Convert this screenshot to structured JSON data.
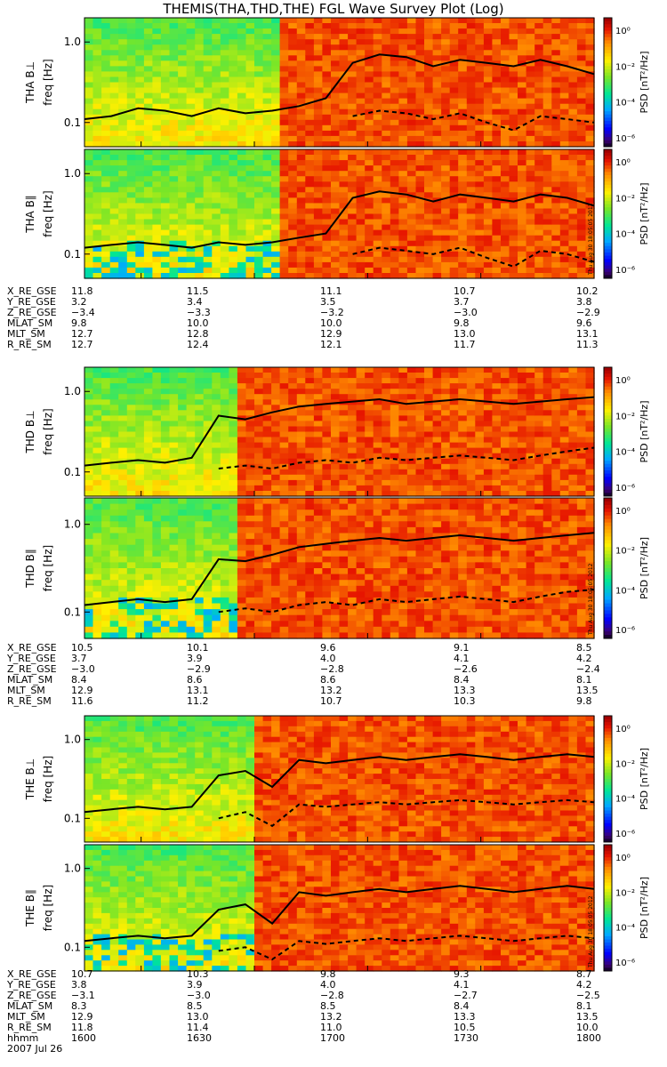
{
  "title": "THEMIS(THA,THD,THE) FGL Wave Survey Plot (Log)",
  "freq_label": "freq [Hz]",
  "colorbar_label": "PSD [nT²/Hz]",
  "colorbar_ticks": [
    "10⁰",
    "10⁻²",
    "10⁻⁴",
    "10⁻⁶"
  ],
  "y_ticks": [
    "1.0",
    "0.1"
  ],
  "stamp": "Thu Aug 30 18:05:05 2012",
  "date": "2007 Jul 26",
  "time_axis": {
    "label": "hhmm",
    "ticks": [
      "1600",
      "1630",
      "1700",
      "1730",
      "1800"
    ]
  },
  "colors": {
    "background": "#ffffff",
    "line": "#000000"
  },
  "chart_data": [
    {
      "type": "heatmap",
      "panel": "THA B⊥",
      "ylabel": "THA B⊥",
      "y_scale": "log",
      "ylim": [
        0.05,
        2.0
      ],
      "zlim": [
        1e-06,
        10
      ],
      "onset_hhmm": "1635",
      "lines": {
        "solid": [
          0.11,
          0.12,
          0.15,
          0.14,
          0.12,
          0.15,
          0.13,
          0.14,
          0.16,
          0.2,
          0.55,
          0.7,
          0.65,
          0.5,
          0.6,
          0.55,
          0.5,
          0.6,
          0.5,
          0.4
        ],
        "dashed": [
          0,
          0,
          0,
          0,
          0,
          0,
          0,
          0,
          0,
          0,
          0.12,
          0.14,
          0.13,
          0.11,
          0.13,
          0.1,
          0.08,
          0.12,
          0.11,
          0.1
        ]
      }
    },
    {
      "type": "heatmap",
      "panel": "THA B∥",
      "ylabel": "THA B∥",
      "y_scale": "log",
      "ylim": [
        0.05,
        2.0
      ],
      "zlim": [
        1e-06,
        10
      ],
      "onset_hhmm": "1635",
      "lines": {
        "solid": [
          0.12,
          0.13,
          0.14,
          0.13,
          0.12,
          0.14,
          0.13,
          0.14,
          0.16,
          0.18,
          0.5,
          0.6,
          0.55,
          0.45,
          0.55,
          0.5,
          0.45,
          0.55,
          0.5,
          0.4
        ],
        "dashed": [
          0,
          0,
          0,
          0,
          0,
          0,
          0,
          0,
          0,
          0,
          0.1,
          0.12,
          0.11,
          0.1,
          0.12,
          0.09,
          0.07,
          0.11,
          0.1,
          0.08
        ]
      }
    },
    {
      "type": "heatmap",
      "panel": "THD B⊥",
      "ylabel": "THD B⊥",
      "y_scale": "log",
      "ylim": [
        0.05,
        2.0
      ],
      "zlim": [
        1e-06,
        10
      ],
      "onset_hhmm": "1625",
      "lines": {
        "solid": [
          0.12,
          0.13,
          0.14,
          0.13,
          0.15,
          0.5,
          0.45,
          0.55,
          0.65,
          0.7,
          0.75,
          0.8,
          0.7,
          0.75,
          0.8,
          0.75,
          0.7,
          0.75,
          0.8,
          0.85
        ],
        "dashed": [
          0,
          0,
          0,
          0,
          0,
          0.11,
          0.12,
          0.11,
          0.13,
          0.14,
          0.13,
          0.15,
          0.14,
          0.15,
          0.16,
          0.15,
          0.14,
          0.16,
          0.18,
          0.2
        ]
      }
    },
    {
      "type": "heatmap",
      "panel": "THD B∥",
      "ylabel": "THD B∥",
      "y_scale": "log",
      "ylim": [
        0.05,
        2.0
      ],
      "zlim": [
        1e-06,
        10
      ],
      "onset_hhmm": "1625",
      "lines": {
        "solid": [
          0.12,
          0.13,
          0.14,
          0.13,
          0.14,
          0.4,
          0.38,
          0.45,
          0.55,
          0.6,
          0.65,
          0.7,
          0.65,
          0.7,
          0.75,
          0.7,
          0.65,
          0.7,
          0.75,
          0.8
        ],
        "dashed": [
          0,
          0,
          0,
          0,
          0,
          0.1,
          0.11,
          0.1,
          0.12,
          0.13,
          0.12,
          0.14,
          0.13,
          0.14,
          0.15,
          0.14,
          0.13,
          0.15,
          0.17,
          0.18
        ]
      }
    },
    {
      "type": "heatmap",
      "panel": "THE B⊥",
      "ylabel": "THE B⊥",
      "y_scale": "log",
      "ylim": [
        0.05,
        2.0
      ],
      "zlim": [
        1e-06,
        10
      ],
      "onset_hhmm": "1630",
      "lines": {
        "solid": [
          0.12,
          0.13,
          0.14,
          0.13,
          0.14,
          0.35,
          0.4,
          0.25,
          0.55,
          0.5,
          0.55,
          0.6,
          0.55,
          0.6,
          0.65,
          0.6,
          0.55,
          0.6,
          0.65,
          0.6
        ],
        "dashed": [
          0,
          0,
          0,
          0,
          0,
          0.1,
          0.12,
          0.08,
          0.15,
          0.14,
          0.15,
          0.16,
          0.15,
          0.16,
          0.17,
          0.16,
          0.15,
          0.16,
          0.17,
          0.16
        ]
      }
    },
    {
      "type": "heatmap",
      "panel": "THE B∥",
      "ylabel": "THE B∥",
      "y_scale": "log",
      "ylim": [
        0.05,
        2.0
      ],
      "zlim": [
        1e-06,
        10
      ],
      "onset_hhmm": "1630",
      "lines": {
        "solid": [
          0.12,
          0.13,
          0.14,
          0.13,
          0.14,
          0.3,
          0.35,
          0.2,
          0.5,
          0.45,
          0.5,
          0.55,
          0.5,
          0.55,
          0.6,
          0.55,
          0.5,
          0.55,
          0.6,
          0.55
        ],
        "dashed": [
          0,
          0,
          0,
          0,
          0,
          0.09,
          0.1,
          0.07,
          0.12,
          0.11,
          0.12,
          0.13,
          0.12,
          0.13,
          0.14,
          0.13,
          0.12,
          0.13,
          0.14,
          0.13
        ]
      }
    }
  ],
  "ephemeris": [
    {
      "rows": [
        {
          "label": "X_RE_GSE",
          "values": [
            "11.8",
            "11.5",
            "11.1",
            "10.7",
            "10.2"
          ]
        },
        {
          "label": "Y_RE_GSE",
          "values": [
            "3.2",
            "3.4",
            "3.5",
            "3.7",
            "3.8"
          ]
        },
        {
          "label": "Z_RE_GSE",
          "values": [
            "−3.4",
            "−3.3",
            "−3.2",
            "−3.0",
            "−2.9"
          ]
        },
        {
          "label": "MLAT_SM",
          "values": [
            "9.8",
            "10.0",
            "10.0",
            "9.8",
            "9.6"
          ]
        },
        {
          "label": "MLT_SM",
          "values": [
            "12.7",
            "12.8",
            "12.9",
            "13.0",
            "13.1"
          ]
        },
        {
          "label": "R_RE_SM",
          "values": [
            "12.7",
            "12.4",
            "12.1",
            "11.7",
            "11.3"
          ]
        }
      ]
    },
    {
      "rows": [
        {
          "label": "X_RE_GSE",
          "values": [
            "10.5",
            "10.1",
            "9.6",
            "9.1",
            "8.5"
          ]
        },
        {
          "label": "Y_RE_GSE",
          "values": [
            "3.7",
            "3.9",
            "4.0",
            "4.1",
            "4.2"
          ]
        },
        {
          "label": "Z_RE_GSE",
          "values": [
            "−3.0",
            "−2.9",
            "−2.8",
            "−2.6",
            "−2.4"
          ]
        },
        {
          "label": "MLAT_SM",
          "values": [
            "8.4",
            "8.6",
            "8.6",
            "8.4",
            "8.1"
          ]
        },
        {
          "label": "MLT_SM",
          "values": [
            "12.9",
            "13.1",
            "13.2",
            "13.3",
            "13.5"
          ]
        },
        {
          "label": "R_RE_SM",
          "values": [
            "11.6",
            "11.2",
            "10.7",
            "10.3",
            "9.8"
          ]
        }
      ]
    },
    {
      "rows": [
        {
          "label": "X_RE_GSE",
          "values": [
            "10.7",
            "10.3",
            "9.8",
            "9.3",
            "8.7"
          ]
        },
        {
          "label": "Y_RE_GSE",
          "values": [
            "3.8",
            "3.9",
            "4.0",
            "4.1",
            "4.2"
          ]
        },
        {
          "label": "Z_RE_GSE",
          "values": [
            "−3.1",
            "−3.0",
            "−2.8",
            "−2.7",
            "−2.5"
          ]
        },
        {
          "label": "MLAT_SM",
          "values": [
            "8.3",
            "8.5",
            "8.5",
            "8.4",
            "8.1"
          ]
        },
        {
          "label": "MLT_SM",
          "values": [
            "12.9",
            "13.0",
            "13.2",
            "13.3",
            "13.5"
          ]
        },
        {
          "label": "R_RE_SM",
          "values": [
            "11.8",
            "11.4",
            "11.0",
            "10.5",
            "10.0"
          ]
        }
      ]
    }
  ]
}
